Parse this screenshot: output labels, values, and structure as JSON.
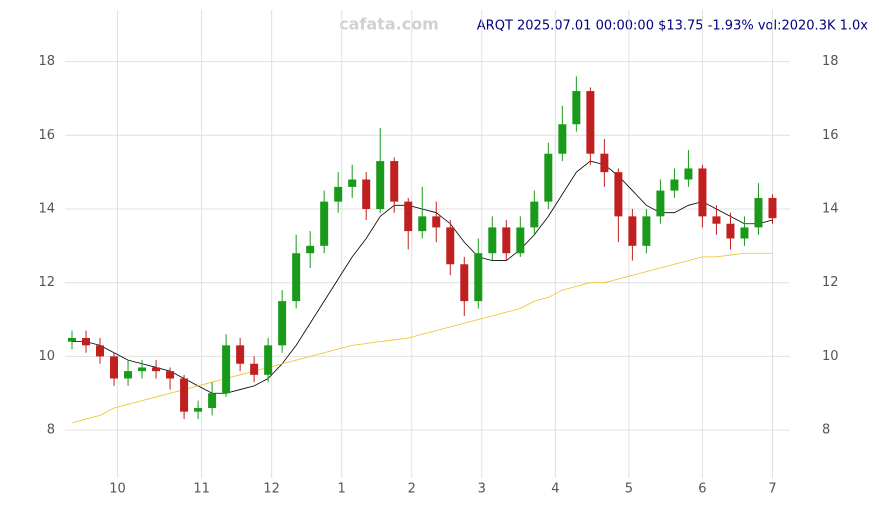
{
  "chart_data": {
    "type": "candlestick",
    "title": "ARQT 2025.07.01 00:00:00 $13.75 -1.93% vol:2020.3K 1.0x",
    "watermark": "cafata.com",
    "x": [
      0,
      4,
      8,
      12,
      16,
      20,
      24,
      28,
      32,
      36,
      40,
      44,
      48,
      52,
      56,
      60,
      64,
      68,
      72,
      76,
      80,
      84,
      88,
      92,
      96,
      100,
      104,
      108,
      112,
      116,
      120,
      124,
      128,
      132,
      136,
      140,
      144,
      148,
      152,
      156,
      160,
      164,
      168,
      172,
      176,
      180,
      184,
      188,
      192,
      196,
      200
    ],
    "open": [
      10.4,
      10.5,
      10.3,
      10.0,
      9.4,
      9.6,
      9.7,
      9.6,
      9.4,
      8.5,
      8.6,
      9.0,
      10.3,
      9.8,
      9.5,
      10.3,
      11.5,
      12.8,
      13.0,
      14.2,
      14.6,
      14.8,
      14.0,
      15.3,
      14.2,
      13.4,
      13.8,
      13.5,
      12.5,
      11.5,
      12.8,
      13.5,
      12.8,
      13.5,
      14.2,
      15.5,
      16.3,
      17.2,
      15.5,
      15.0,
      13.8,
      13.0,
      13.8,
      14.5,
      14.8,
      15.1,
      13.8,
      13.6,
      13.2,
      13.5,
      14.3
    ],
    "high": [
      10.7,
      10.7,
      10.5,
      10.1,
      9.9,
      9.9,
      9.9,
      9.7,
      9.5,
      8.8,
      9.3,
      10.6,
      10.5,
      10.0,
      10.5,
      11.8,
      13.3,
      13.4,
      14.5,
      15.0,
      15.2,
      15.0,
      16.2,
      15.4,
      14.3,
      14.6,
      14.2,
      13.7,
      12.7,
      13.2,
      13.8,
      13.7,
      13.8,
      14.5,
      15.8,
      16.8,
      17.6,
      17.3,
      15.9,
      15.1,
      14.0,
      14.0,
      14.8,
      15.1,
      15.6,
      15.2,
      14.1,
      13.9,
      13.8,
      14.7,
      14.4
    ],
    "low": [
      10.2,
      10.1,
      9.8,
      9.2,
      9.2,
      9.4,
      9.4,
      9.1,
      8.3,
      8.3,
      8.4,
      8.9,
      9.6,
      9.3,
      9.3,
      10.1,
      11.3,
      12.4,
      12.8,
      13.9,
      14.3,
      13.7,
      13.9,
      13.9,
      12.9,
      13.2,
      13.1,
      12.2,
      11.1,
      11.3,
      12.6,
      12.6,
      12.7,
      13.3,
      14.0,
      15.3,
      16.1,
      15.2,
      14.6,
      13.1,
      12.6,
      12.8,
      13.6,
      14.3,
      14.6,
      13.5,
      13.3,
      12.9,
      13.0,
      13.3,
      13.6
    ],
    "close": [
      10.5,
      10.3,
      10.0,
      9.4,
      9.6,
      9.7,
      9.6,
      9.4,
      8.5,
      8.6,
      9.0,
      10.3,
      9.8,
      9.5,
      10.3,
      11.5,
      12.8,
      13.0,
      14.2,
      14.6,
      14.8,
      14.0,
      15.3,
      14.2,
      13.4,
      13.8,
      13.5,
      12.5,
      11.5,
      12.8,
      13.5,
      12.8,
      13.5,
      14.2,
      15.5,
      16.3,
      17.2,
      15.5,
      15.0,
      13.8,
      13.0,
      13.8,
      14.5,
      14.8,
      15.1,
      13.8,
      13.6,
      13.2,
      13.5,
      14.3,
      13.75
    ],
    "up_color": "#1a9a1a",
    "down_color": "#c02020",
    "overlays": [
      {
        "color": "#000000",
        "values": [
          10.4,
          10.4,
          10.3,
          10.1,
          9.9,
          9.8,
          9.7,
          9.6,
          9.4,
          9.2,
          9.0,
          9.0,
          9.1,
          9.2,
          9.4,
          9.8,
          10.3,
          10.9,
          11.5,
          12.1,
          12.7,
          13.2,
          13.8,
          14.1,
          14.1,
          14.0,
          13.9,
          13.6,
          13.1,
          12.7,
          12.6,
          12.6,
          12.9,
          13.3,
          13.8,
          14.4,
          15.0,
          15.3,
          15.2,
          14.9,
          14.5,
          14.1,
          13.9,
          13.9,
          14.1,
          14.2,
          14.0,
          13.8,
          13.6,
          13.6,
          13.7
        ]
      },
      {
        "color": "#f0c020",
        "values": [
          8.2,
          8.3,
          8.4,
          8.6,
          8.7,
          8.8,
          8.9,
          9.0,
          9.1,
          9.2,
          9.3,
          9.4,
          9.5,
          9.6,
          9.7,
          9.8,
          9.9,
          10.0,
          10.1,
          10.2,
          10.3,
          10.35,
          10.4,
          10.45,
          10.5,
          10.6,
          10.7,
          10.8,
          10.9,
          11.0,
          11.1,
          11.2,
          11.3,
          11.5,
          11.6,
          11.8,
          11.9,
          12.0,
          12.0,
          12.1,
          12.2,
          12.3,
          12.4,
          12.5,
          12.6,
          12.7,
          12.7,
          12.75,
          12.8,
          12.8,
          12.8
        ]
      }
    ],
    "xlim": [
      -2,
      205
    ],
    "xticks": [
      {
        "value": 13,
        "label": "10"
      },
      {
        "value": 37,
        "label": "11"
      },
      {
        "value": 57,
        "label": "12"
      },
      {
        "value": 77,
        "label": "1"
      },
      {
        "value": 97,
        "label": "2"
      },
      {
        "value": 117,
        "label": "3"
      },
      {
        "value": 138,
        "label": "4"
      },
      {
        "value": 159,
        "label": "5"
      },
      {
        "value": 180,
        "label": "6"
      },
      {
        "value": 200,
        "label": "7"
      }
    ],
    "ylim": [
      6.7,
      19.4
    ],
    "yticks": [
      8,
      10,
      12,
      14,
      16,
      18
    ],
    "grid": true
  }
}
